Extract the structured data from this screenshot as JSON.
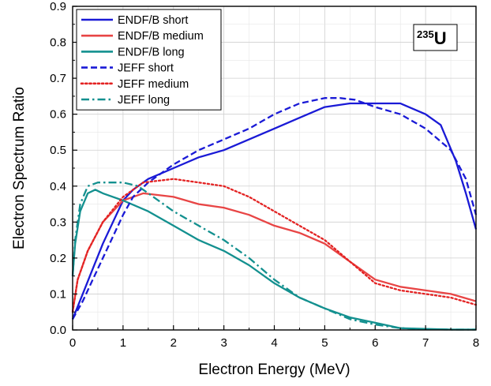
{
  "chart_data": {
    "type": "line",
    "xlabel": "Electron Energy (MeV)",
    "ylabel": "Electron Spectrum Ratio",
    "xlim": [
      0,
      8
    ],
    "ylim": [
      0,
      0.9
    ],
    "x_ticks": [
      0,
      1,
      2,
      3,
      4,
      5,
      6,
      7,
      8
    ],
    "y_ticks": [
      0.0,
      0.1,
      0.2,
      0.3,
      0.4,
      0.5,
      0.6,
      0.7,
      0.8,
      0.9
    ],
    "x_tick_labels": [
      "0",
      "1",
      "2",
      "3",
      "4",
      "5",
      "6",
      "7",
      "8"
    ],
    "y_tick_labels": [
      "0.0",
      "0.1",
      "0.2",
      "0.3",
      "0.4",
      "0.5",
      "0.6",
      "0.7",
      "0.8",
      "0.9"
    ],
    "grid": true,
    "legend_position": "top-left",
    "annotation": {
      "superscript": "235",
      "text": "U"
    },
    "series": [
      {
        "name": "ENDF/B short",
        "color": "#1a1ad6",
        "style": "solid",
        "x": [
          0,
          0.2,
          0.4,
          0.6,
          0.8,
          1.0,
          1.2,
          1.5,
          2.0,
          2.5,
          3.0,
          3.5,
          4.0,
          4.5,
          5.0,
          5.5,
          6.0,
          6.5,
          7.0,
          7.3,
          7.6,
          7.8,
          8.0
        ],
        "y": [
          0.03,
          0.1,
          0.17,
          0.24,
          0.3,
          0.36,
          0.39,
          0.42,
          0.45,
          0.48,
          0.5,
          0.53,
          0.56,
          0.59,
          0.62,
          0.63,
          0.63,
          0.63,
          0.6,
          0.57,
          0.47,
          0.38,
          0.28
        ]
      },
      {
        "name": "ENDF/B medium",
        "color": "#e84545",
        "style": "solid",
        "x": [
          0,
          0.1,
          0.3,
          0.6,
          1.0,
          1.4,
          2.0,
          2.5,
          3.0,
          3.5,
          4.0,
          4.5,
          5.0,
          5.5,
          6.0,
          6.5,
          7.0,
          7.5,
          8.0
        ],
        "y": [
          0.05,
          0.14,
          0.22,
          0.3,
          0.36,
          0.38,
          0.37,
          0.35,
          0.34,
          0.32,
          0.29,
          0.27,
          0.24,
          0.19,
          0.14,
          0.12,
          0.11,
          0.1,
          0.08
        ]
      },
      {
        "name": "ENDF/B long",
        "color": "#13908f",
        "style": "solid",
        "x": [
          0,
          0.05,
          0.15,
          0.3,
          0.45,
          0.6,
          1.0,
          1.5,
          2.0,
          2.5,
          3.0,
          3.5,
          4.0,
          4.5,
          5.0,
          5.5,
          6.0,
          6.5,
          7.0,
          7.5,
          8.0
        ],
        "y": [
          0.15,
          0.24,
          0.33,
          0.38,
          0.39,
          0.38,
          0.36,
          0.33,
          0.29,
          0.25,
          0.22,
          0.18,
          0.13,
          0.09,
          0.06,
          0.035,
          0.02,
          0.005,
          0.003,
          0.001,
          0.001
        ]
      },
      {
        "name": "JEFF short",
        "color": "#1a1ad6",
        "style": "dash",
        "x": [
          0,
          0.2,
          0.4,
          0.6,
          0.8,
          1.0,
          1.2,
          1.5,
          2.0,
          2.5,
          3.0,
          3.5,
          4.0,
          4.5,
          5.0,
          5.3,
          5.6,
          6.0,
          6.5,
          7.0,
          7.5,
          7.8,
          8.0
        ],
        "y": [
          0.03,
          0.08,
          0.14,
          0.2,
          0.26,
          0.32,
          0.37,
          0.41,
          0.46,
          0.5,
          0.53,
          0.56,
          0.6,
          0.63,
          0.645,
          0.645,
          0.64,
          0.62,
          0.6,
          0.56,
          0.5,
          0.42,
          0.32
        ]
      },
      {
        "name": "JEFF medium",
        "color": "#e32222",
        "style": "dot",
        "x": [
          0,
          0.1,
          0.3,
          0.6,
          1.0,
          1.4,
          2.0,
          2.5,
          3.0,
          3.5,
          4.0,
          4.5,
          5.0,
          5.5,
          6.0,
          6.5,
          7.0,
          7.5,
          8.0
        ],
        "y": [
          0.05,
          0.14,
          0.22,
          0.3,
          0.37,
          0.41,
          0.42,
          0.41,
          0.4,
          0.37,
          0.33,
          0.29,
          0.25,
          0.19,
          0.13,
          0.11,
          0.1,
          0.09,
          0.07
        ]
      },
      {
        "name": "JEFF long",
        "color": "#13908f",
        "style": "dashdot",
        "x": [
          0,
          0.05,
          0.15,
          0.3,
          0.5,
          0.8,
          1.0,
          1.3,
          1.6,
          2.0,
          2.5,
          3.0,
          3.5,
          4.0,
          4.5,
          5.0,
          5.5,
          6.0,
          6.5,
          7.0,
          7.5,
          8.0
        ],
        "y": [
          0.15,
          0.25,
          0.35,
          0.4,
          0.41,
          0.41,
          0.41,
          0.4,
          0.37,
          0.33,
          0.29,
          0.25,
          0.2,
          0.14,
          0.09,
          0.06,
          0.03,
          0.015,
          0.005,
          0.002,
          0.001,
          0.001
        ]
      }
    ]
  }
}
